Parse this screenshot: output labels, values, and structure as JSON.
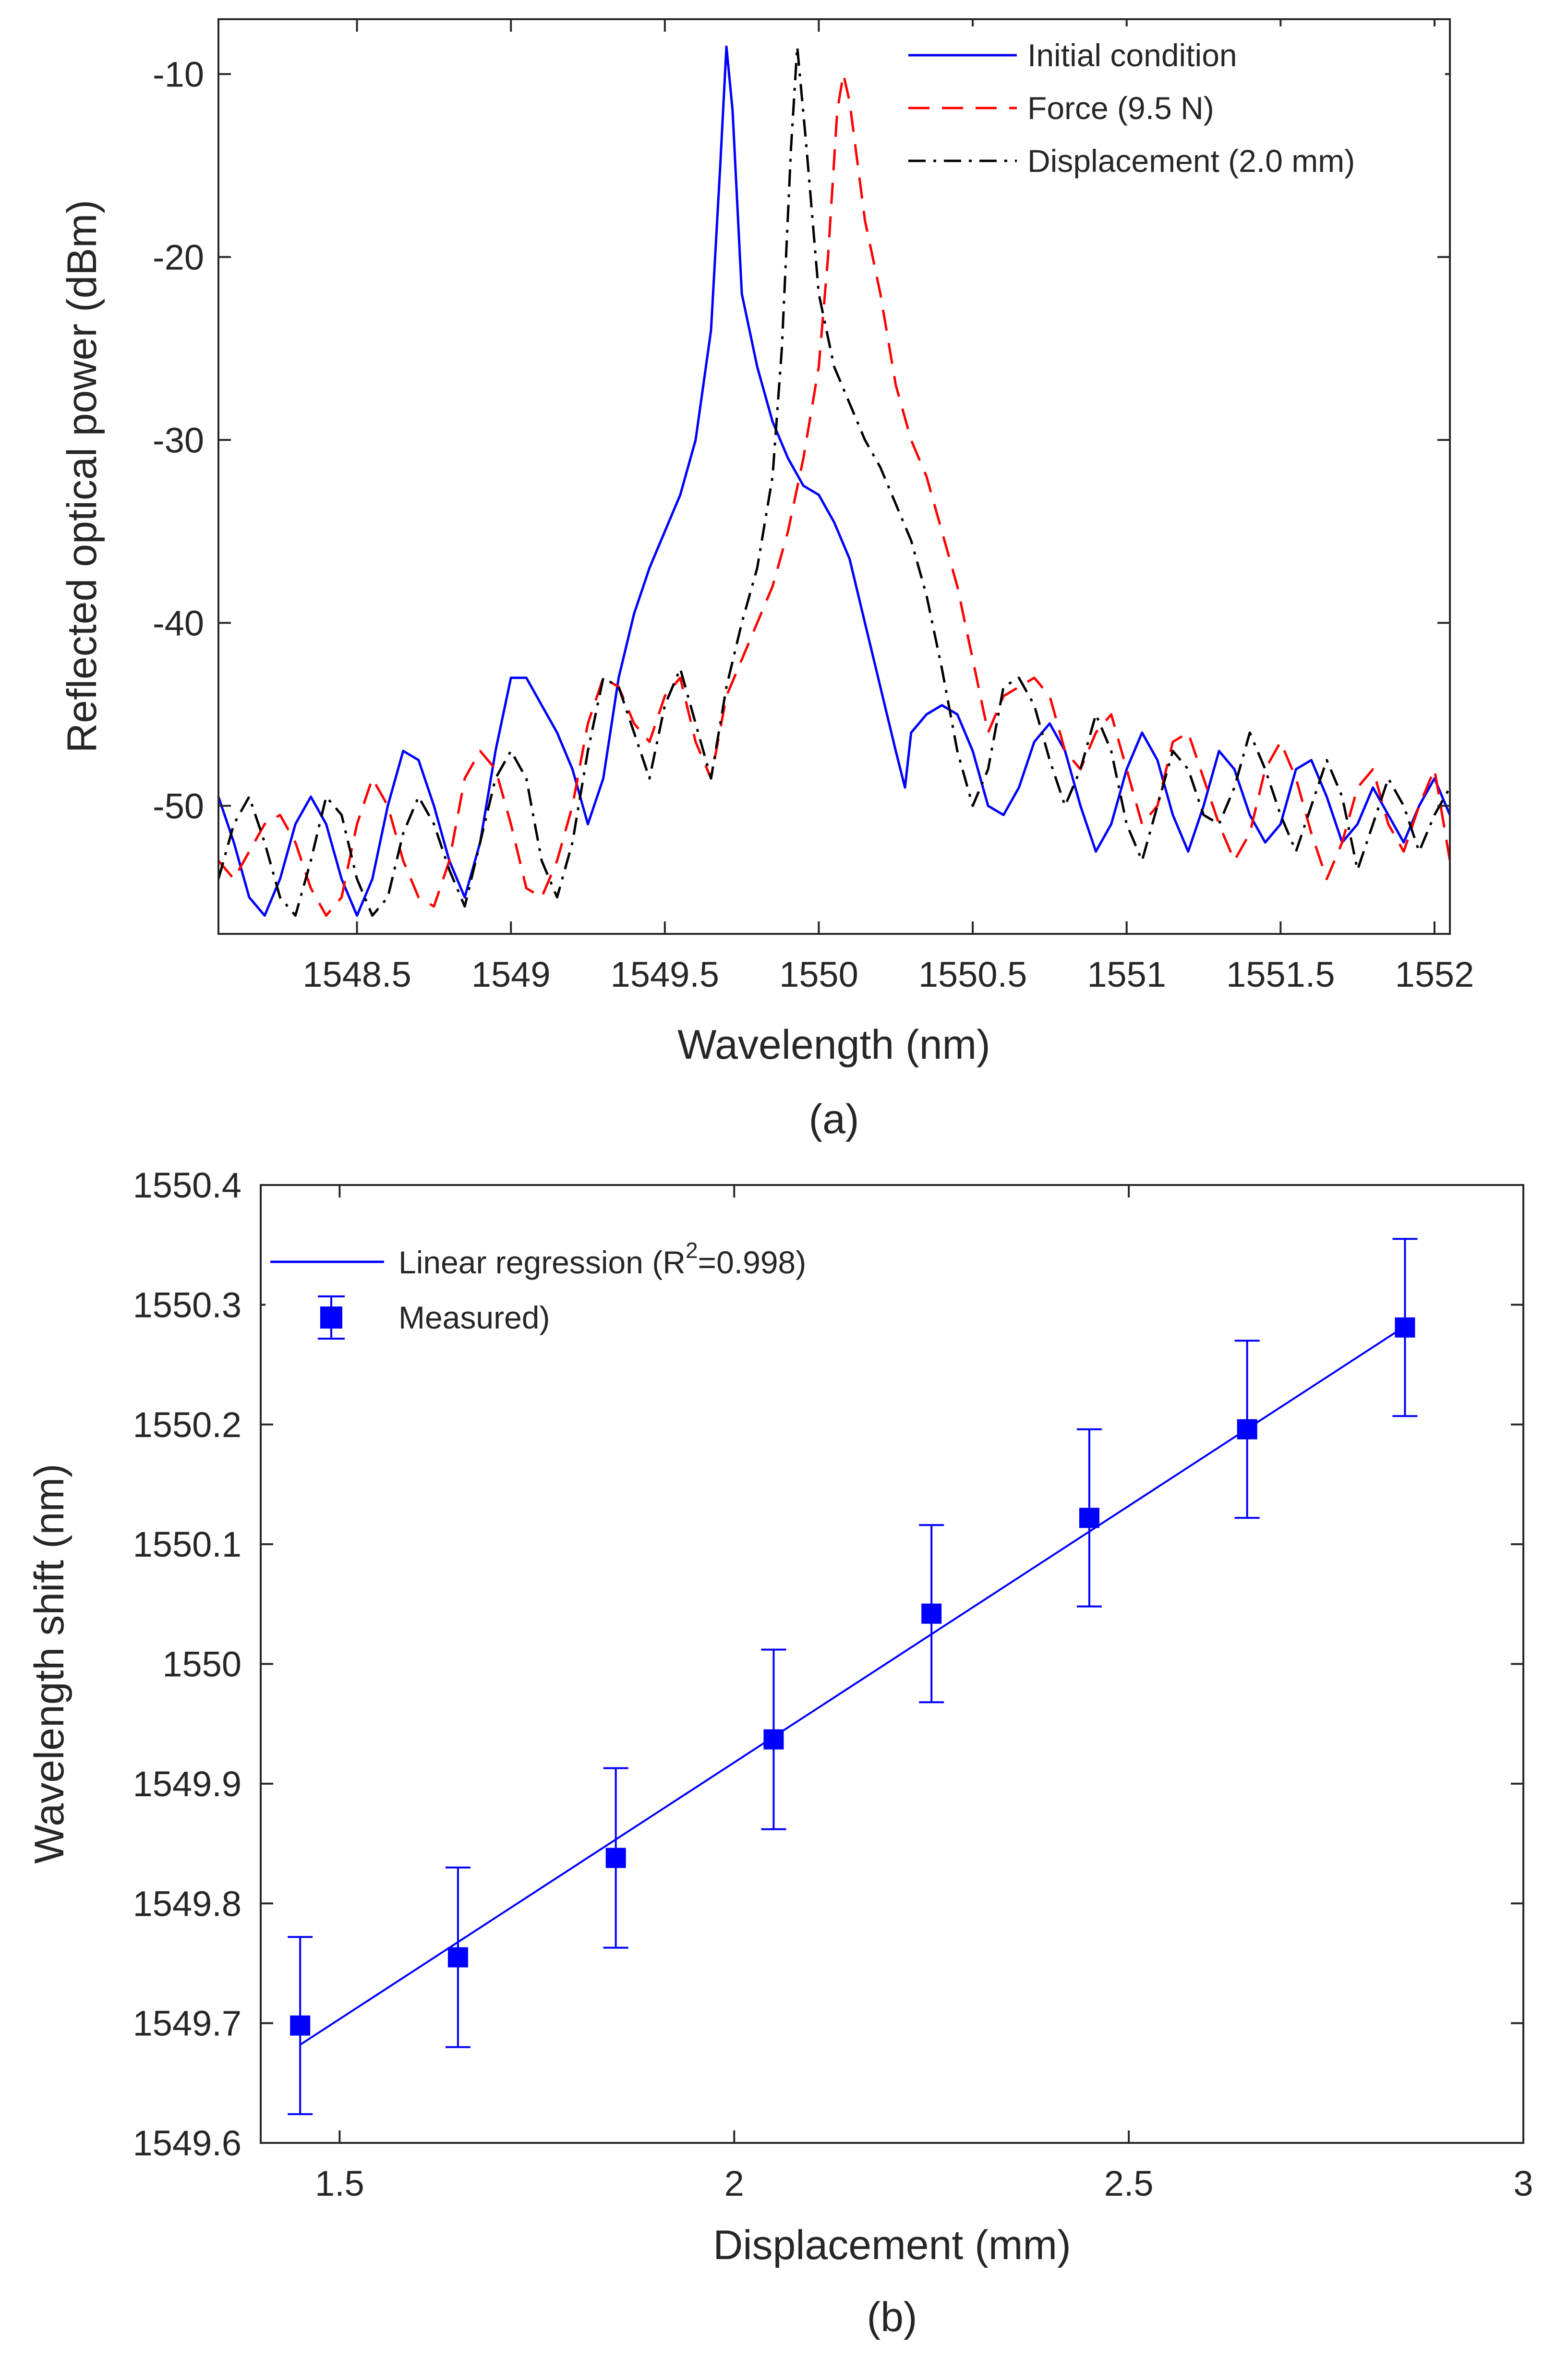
{
  "chart_data": [
    {
      "type": "line",
      "panel_label": "(a)",
      "xlabel": "Wavelength (nm)",
      "ylabel": "Reflected optical power (dBm)",
      "xlim": [
        1548.05,
        1552.05
      ],
      "ylim": [
        -57,
        -7
      ],
      "xticks": [
        1548.5,
        1549,
        1549.5,
        1550,
        1550.5,
        1551,
        1551.5,
        1552
      ],
      "xtick_labels": [
        "1548.5",
        "1549",
        "1549.5",
        "1550",
        "1550.5",
        "1551",
        "1551.5",
        "1552"
      ],
      "yticks": [
        -10,
        -20,
        -30,
        -40,
        -50
      ],
      "ytick_labels": [
        "-10",
        "-20",
        "-30",
        "-40",
        "-50"
      ],
      "legend_position": "top-right",
      "series": [
        {
          "name": "Initial condition",
          "color": "#0000ff",
          "dash": "solid",
          "x": [
            1548.05,
            1548.1,
            1548.15,
            1548.2,
            1548.25,
            1548.3,
            1548.35,
            1548.4,
            1548.45,
            1548.5,
            1548.55,
            1548.6,
            1548.65,
            1548.7,
            1548.75,
            1548.8,
            1548.85,
            1548.9,
            1548.95,
            1549.0,
            1549.05,
            1549.1,
            1549.15,
            1549.2,
            1549.25,
            1549.3,
            1549.35,
            1549.4,
            1549.45,
            1549.5,
            1549.55,
            1549.6,
            1549.65,
            1549.68,
            1549.7,
            1549.72,
            1549.75,
            1549.8,
            1549.85,
            1549.9,
            1549.95,
            1550.0,
            1550.05,
            1550.1,
            1550.15,
            1550.2,
            1550.25,
            1550.28,
            1550.3,
            1550.35,
            1550.4,
            1550.45,
            1550.5,
            1550.55,
            1550.6,
            1550.65,
            1550.7,
            1550.75,
            1550.8,
            1550.85,
            1550.9,
            1550.95,
            1551.0,
            1551.05,
            1551.1,
            1551.15,
            1551.2,
            1551.25,
            1551.3,
            1551.35,
            1551.4,
            1551.45,
            1551.5,
            1551.55,
            1551.6,
            1551.65,
            1551.7,
            1551.75,
            1551.8,
            1551.85,
            1551.9,
            1551.95,
            1552.0,
            1552.05
          ],
          "y": [
            -49.5,
            -52,
            -55,
            -56,
            -54,
            -51,
            -49.5,
            -51,
            -54,
            -56,
            -54,
            -50,
            -47,
            -47.5,
            -50,
            -53,
            -55,
            -52,
            -47,
            -43,
            -43,
            -44.5,
            -46,
            -48,
            -51,
            -48.5,
            -43,
            -39.5,
            -37,
            -35,
            -33,
            -30,
            -24,
            -15,
            -8.5,
            -12,
            -22,
            -26,
            -29,
            -31,
            -32.5,
            -33,
            -34.5,
            -36.5,
            -40,
            -43.5,
            -47,
            -49,
            -46,
            -45,
            -44.5,
            -45,
            -47,
            -50,
            -50.5,
            -49,
            -46.5,
            -45.5,
            -47,
            -50,
            -52.5,
            -51,
            -48,
            -46,
            -47.5,
            -50.5,
            -52.5,
            -50,
            -47,
            -48,
            -50.5,
            -52,
            -51,
            -48,
            -47.5,
            -49.5,
            -52,
            -51,
            -49,
            -50.5,
            -52,
            -50,
            -48.5,
            -50.5
          ]
        },
        {
          "name": "Force (9.5 N)",
          "color": "#ff0000",
          "dash": "dashed",
          "x": [
            1548.05,
            1548.1,
            1548.15,
            1548.2,
            1548.25,
            1548.3,
            1548.35,
            1548.4,
            1548.45,
            1548.5,
            1548.55,
            1548.6,
            1548.65,
            1548.7,
            1548.75,
            1548.8,
            1548.85,
            1548.9,
            1548.95,
            1549.0,
            1549.05,
            1549.1,
            1549.15,
            1549.2,
            1549.25,
            1549.3,
            1549.35,
            1549.4,
            1549.45,
            1549.5,
            1549.55,
            1549.6,
            1549.65,
            1549.7,
            1549.75,
            1549.8,
            1549.85,
            1549.9,
            1549.95,
            1550.0,
            1550.03,
            1550.06,
            1550.08,
            1550.1,
            1550.15,
            1550.2,
            1550.25,
            1550.3,
            1550.35,
            1550.4,
            1550.45,
            1550.5,
            1550.55,
            1550.6,
            1550.65,
            1550.7,
            1550.75,
            1550.8,
            1550.85,
            1550.9,
            1550.95,
            1551.0,
            1551.05,
            1551.1,
            1551.15,
            1551.2,
            1551.25,
            1551.3,
            1551.35,
            1551.4,
            1551.45,
            1551.5,
            1551.55,
            1551.6,
            1551.65,
            1551.7,
            1551.75,
            1551.8,
            1551.85,
            1551.9,
            1551.95,
            1552.0,
            1552.05
          ],
          "y": [
            -53,
            -54,
            -52.5,
            -51,
            -50.5,
            -52,
            -54.5,
            -56,
            -55,
            -51,
            -48.5,
            -50,
            -53,
            -55,
            -55.5,
            -53,
            -48.5,
            -47,
            -48,
            -51,
            -54.5,
            -55,
            -53,
            -50,
            -45.5,
            -43,
            -43.5,
            -45.5,
            -46.5,
            -44,
            -43,
            -46.5,
            -48.5,
            -44,
            -42,
            -40,
            -38,
            -35,
            -31,
            -26,
            -20,
            -12,
            -10,
            -11.5,
            -18,
            -22,
            -27,
            -30,
            -32,
            -35,
            -38,
            -42,
            -46,
            -44,
            -43.5,
            -43,
            -44,
            -47,
            -48,
            -46,
            -45,
            -48,
            -51,
            -50,
            -46.5,
            -46,
            -48.5,
            -51,
            -53,
            -51.5,
            -48,
            -46.5,
            -48.5,
            -51.5,
            -54,
            -52,
            -49,
            -48,
            -51,
            -52.5,
            -50,
            -48,
            -53
          ]
        },
        {
          "name": "Displacement (2.0 mm)",
          "color": "#000000",
          "dash": "dashdot",
          "x": [
            1548.05,
            1548.1,
            1548.15,
            1548.2,
            1548.25,
            1548.3,
            1548.35,
            1548.4,
            1548.45,
            1548.5,
            1548.55,
            1548.6,
            1548.65,
            1548.7,
            1548.75,
            1548.8,
            1548.85,
            1548.9,
            1548.95,
            1549.0,
            1549.05,
            1549.1,
            1549.15,
            1549.2,
            1549.25,
            1549.3,
            1549.35,
            1549.4,
            1549.45,
            1549.5,
            1549.55,
            1549.6,
            1549.65,
            1549.7,
            1549.75,
            1549.8,
            1549.85,
            1549.88,
            1549.91,
            1549.93,
            1549.96,
            1550.0,
            1550.05,
            1550.1,
            1550.15,
            1550.2,
            1550.25,
            1550.3,
            1550.35,
            1550.4,
            1550.45,
            1550.5,
            1550.55,
            1550.6,
            1550.65,
            1550.7,
            1550.75,
            1550.8,
            1550.85,
            1550.9,
            1550.95,
            1551.0,
            1551.05,
            1551.1,
            1551.15,
            1551.2,
            1551.25,
            1551.3,
            1551.35,
            1551.4,
            1551.45,
            1551.5,
            1551.55,
            1551.6,
            1551.65,
            1551.7,
            1551.75,
            1551.8,
            1551.85,
            1551.9,
            1551.95,
            1552.0,
            1552.05
          ],
          "y": [
            -54,
            -51,
            -49.5,
            -52,
            -55,
            -56,
            -53,
            -49.5,
            -50.5,
            -54,
            -56,
            -55,
            -51.5,
            -49.5,
            -51,
            -53.5,
            -55.5,
            -52,
            -48.5,
            -47,
            -48.5,
            -53,
            -55,
            -52,
            -47,
            -43,
            -43.5,
            -46,
            -48.5,
            -44.5,
            -42.5,
            -45.5,
            -48.5,
            -43.5,
            -40,
            -37,
            -32,
            -25,
            -14,
            -8.5,
            -14,
            -22,
            -26,
            -28,
            -30,
            -31.5,
            -33.5,
            -35.5,
            -38.5,
            -42.5,
            -47,
            -50,
            -48,
            -43.5,
            -43,
            -44.5,
            -47.5,
            -50,
            -48,
            -45,
            -47,
            -51,
            -53,
            -50,
            -47,
            -48,
            -50.5,
            -51,
            -49,
            -46,
            -48,
            -50.5,
            -52.5,
            -50,
            -47.5,
            -49.5,
            -53.5,
            -51,
            -48.5,
            -50,
            -52.5,
            -50.5,
            -49
          ]
        }
      ]
    },
    {
      "type": "scatter",
      "panel_label": "(b)",
      "xlabel": "Displacement (mm)",
      "ylabel": "Wavelength shift (nm)",
      "xlim": [
        1.4,
        3.0
      ],
      "ylim": [
        1549.6,
        1550.4
      ],
      "xticks": [
        1.5,
        2,
        2.5,
        3
      ],
      "xtick_labels": [
        "1.5",
        "2",
        "2.5",
        "3"
      ],
      "yticks": [
        1549.6,
        1549.7,
        1549.8,
        1549.9,
        1550,
        1550.1,
        1550.2,
        1550.3,
        1550.4
      ],
      "ytick_labels": [
        "1549.6",
        "1549.7",
        "1549.8",
        "1549.9",
        "1550",
        "1550.1",
        "1550.2",
        "1550.3",
        "1550.4"
      ],
      "legend_position": "top-left",
      "series": [
        {
          "name": "Linear regression (R",
          "name_superscript": "2",
          "name_suffix": "=0.998)",
          "type": "line",
          "color": "#0000ff",
          "x": [
            1.45,
            2.85
          ],
          "y": [
            1549.682,
            1550.282
          ]
        },
        {
          "name": "Measured)",
          "type": "scatter",
          "marker": "square",
          "color": "#0000ff",
          "x": [
            1.45,
            1.65,
            1.85,
            2.05,
            2.25,
            2.45,
            2.65,
            2.85
          ],
          "y": [
            1549.698,
            1549.755,
            1549.838,
            1549.937,
            1550.042,
            1550.122,
            1550.196,
            1550.281
          ],
          "error": [
            0.074,
            0.075,
            0.075,
            0.075,
            0.074,
            0.074,
            0.074,
            0.074
          ]
        }
      ]
    }
  ]
}
